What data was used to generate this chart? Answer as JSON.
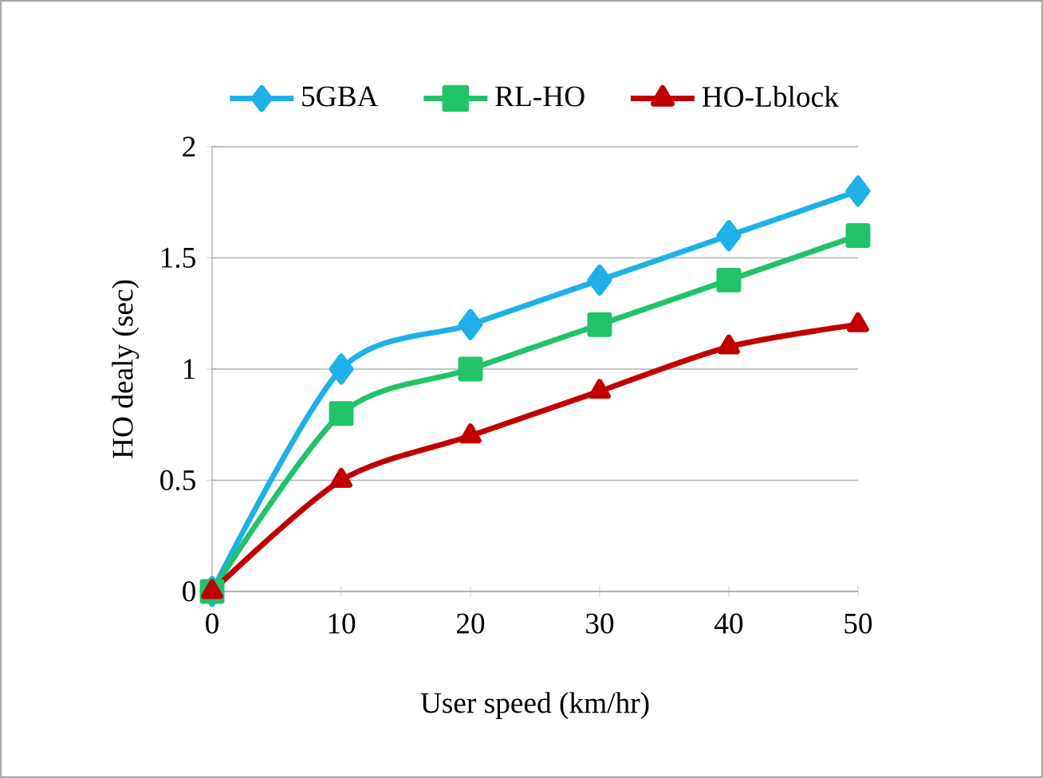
{
  "chart_data": {
    "type": "line",
    "xlabel": "User speed (km/hr)",
    "ylabel": "HO dealy (sec)",
    "x": [
      0,
      10,
      20,
      30,
      40,
      50
    ],
    "xlim": [
      0,
      50
    ],
    "xticks": [
      0,
      10,
      20,
      30,
      40,
      50
    ],
    "ylim": [
      0,
      2
    ],
    "yticks": [
      0,
      0.5,
      1,
      1.5,
      2
    ],
    "grid": "y",
    "legend": "top",
    "line_style": "solid",
    "series": [
      {
        "name": "5GBA",
        "color": "#1fb0e8",
        "marker": "diamond",
        "values": [
          0,
          1,
          1.2,
          1.4,
          1.6,
          1.8
        ]
      },
      {
        "name": "RL-HO",
        "color": "#22c26a",
        "marker": "square",
        "values": [
          0,
          0.8,
          1,
          1.2,
          1.4,
          1.6
        ]
      },
      {
        "name": "HO-Lblock",
        "color": "#c00000",
        "marker": "triangle",
        "values": [
          0,
          0.5,
          0.7,
          0.9,
          1.1,
          1.2
        ]
      }
    ]
  }
}
